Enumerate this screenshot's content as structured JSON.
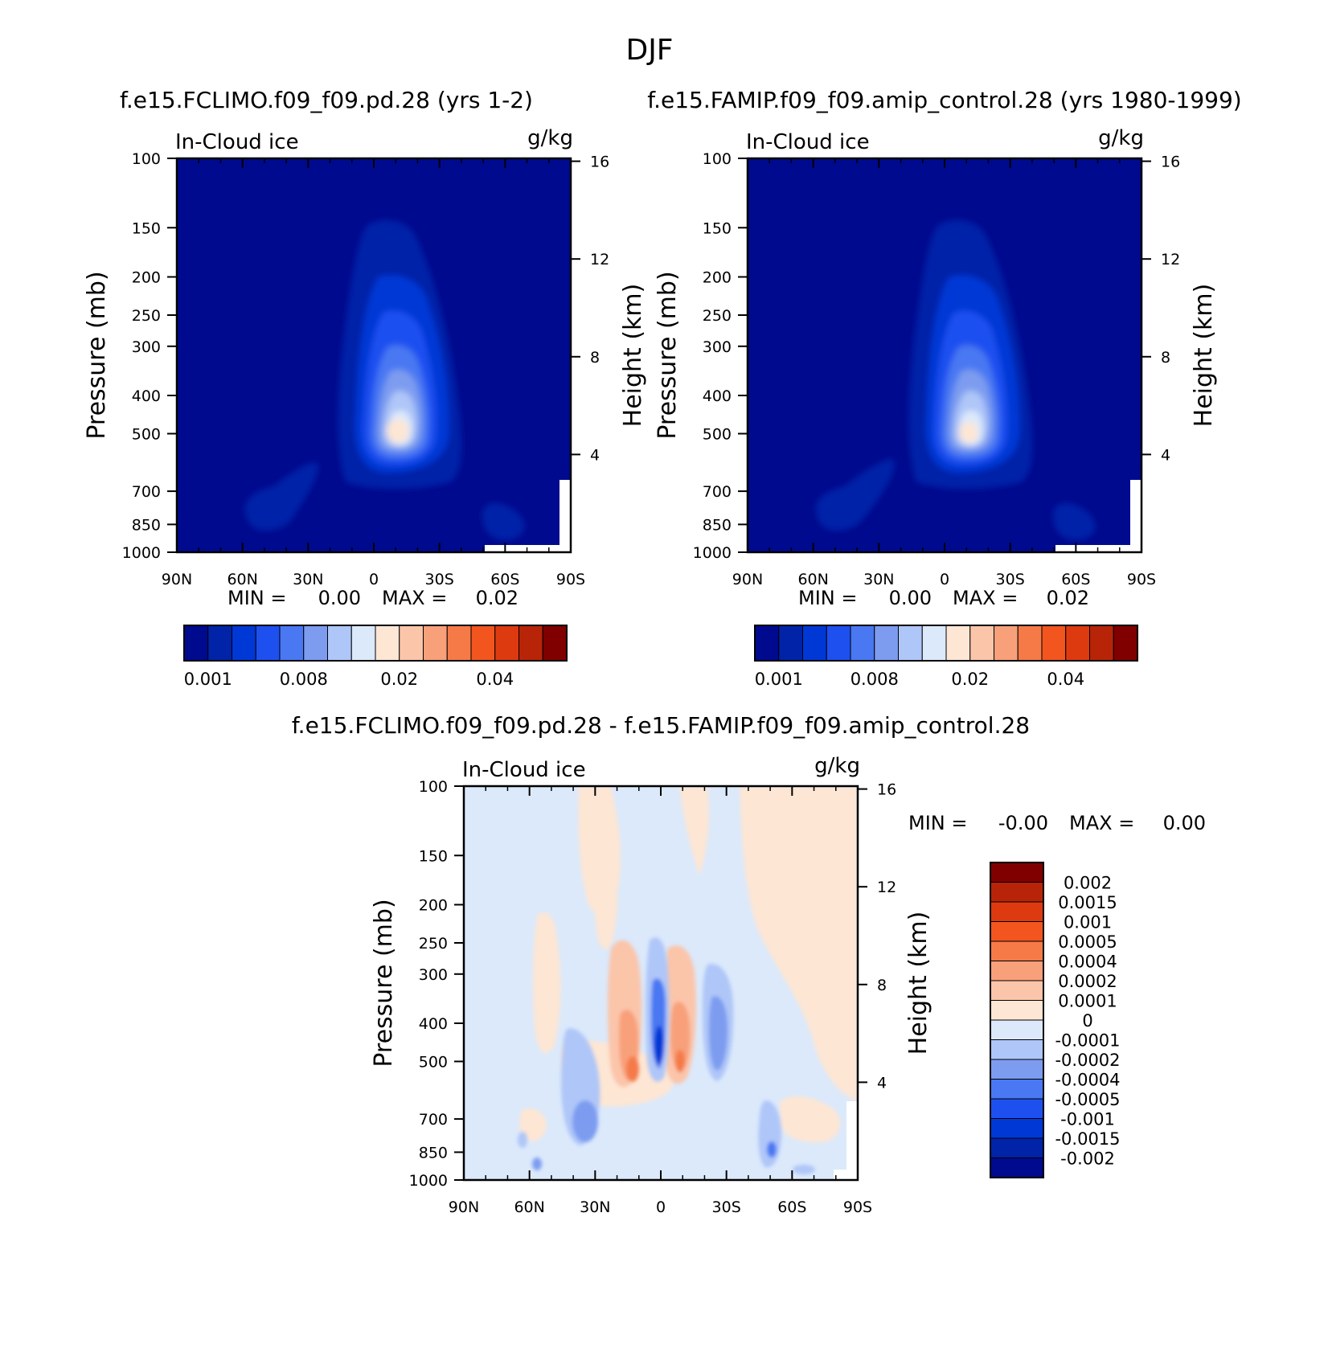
{
  "page": {
    "title": "DJF"
  },
  "colors": {
    "seq": [
      "#000a8e",
      "#0023a8",
      "#0038d6",
      "#1e50f0",
      "#4a78f2",
      "#7d9cf0",
      "#afc6f8",
      "#dbe9fb",
      "#fde6d4",
      "#fbc5aa",
      "#f8a07a",
      "#f57a48",
      "#f2561e",
      "#de3a10",
      "#b82408",
      "#800000"
    ],
    "diff": [
      "#800000",
      "#b82408",
      "#de3a10",
      "#f2561e",
      "#f57a48",
      "#f8a07a",
      "#fbc5aa",
      "#fde6d4",
      "#dbe9fb",
      "#afc6f8",
      "#7d9cf0",
      "#4a78f2",
      "#1e50f0",
      "#0038d6",
      "#0023a8",
      "#000a8e"
    ]
  },
  "chart_data": [
    {
      "type": "heatmap",
      "title": "f.e15.FCLIMO.f09_f09.pd.28 (yrs 1-2)",
      "left_label": "In-Cloud ice",
      "right_label": "g/kg",
      "xlabel": "",
      "ylabel": "Pressure (mb)",
      "y2label": "Height (km)",
      "x_ticks": [
        "90N",
        "60N",
        "30N",
        "0",
        "30S",
        "60S",
        "90S"
      ],
      "x_values": [
        90,
        60,
        30,
        0,
        -30,
        -60,
        -90
      ],
      "y_ticks": [
        100,
        150,
        200,
        250,
        300,
        400,
        500,
        700,
        850,
        1000
      ],
      "ylim": [
        1000,
        100
      ],
      "y2_ticks": [
        4,
        8,
        12,
        16
      ],
      "min_label": "MIN =",
      "min_value": "0.00",
      "max_label": "MAX =",
      "max_value": "0.02",
      "colorbar_labels": [
        "0.001",
        "0.008",
        "0.02",
        "0.04"
      ],
      "colorbar_label_positions": [
        0,
        4,
        8,
        12
      ]
    },
    {
      "type": "heatmap",
      "title": "f.e15.FAMIP.f09_f09.amip_control.28 (yrs 1980-1999)",
      "left_label": "In-Cloud ice",
      "right_label": "g/kg",
      "xlabel": "",
      "ylabel": "Pressure (mb)",
      "y2label": "Height (km)",
      "x_ticks": [
        "90N",
        "60N",
        "30N",
        "0",
        "30S",
        "60S",
        "90S"
      ],
      "x_values": [
        90,
        60,
        30,
        0,
        -30,
        -60,
        -90
      ],
      "y_ticks": [
        100,
        150,
        200,
        250,
        300,
        400,
        500,
        700,
        850,
        1000
      ],
      "ylim": [
        1000,
        100
      ],
      "y2_ticks": [
        4,
        8,
        12,
        16
      ],
      "min_label": "MIN =",
      "min_value": "0.00",
      "max_label": "MAX =",
      "max_value": "0.02",
      "colorbar_labels": [
        "0.001",
        "0.008",
        "0.02",
        "0.04"
      ],
      "colorbar_label_positions": [
        0,
        4,
        8,
        12
      ]
    },
    {
      "type": "heatmap",
      "title": "f.e15.FCLIMO.f09_f09.pd.28 - f.e15.FAMIP.f09_f09.amip_control.28",
      "left_label": "In-Cloud ice",
      "right_label": "g/kg",
      "xlabel": "",
      "ylabel": "Pressure (mb)",
      "y2label": "Height (km)",
      "x_ticks": [
        "90N",
        "60N",
        "30N",
        "0",
        "30S",
        "60S",
        "90S"
      ],
      "x_values": [
        90,
        60,
        30,
        0,
        -30,
        -60,
        -90
      ],
      "y_ticks": [
        100,
        150,
        200,
        250,
        300,
        400,
        500,
        700,
        850,
        1000
      ],
      "ylim": [
        1000,
        100
      ],
      "y2_ticks": [
        4,
        8,
        12,
        16
      ],
      "min_label": "MIN =",
      "min_value": "-0.00",
      "max_label": "MAX =",
      "max_value": "0.00",
      "colorbar_labels": [
        "0.002",
        "0.0015",
        "0.001",
        "0.0005",
        "0.0004",
        "0.0002",
        "0.0001",
        "0",
        "-0.0001",
        "-0.0002",
        "-0.0004",
        "-0.0005",
        "-0.001",
        "-0.0015",
        "-0.002"
      ]
    }
  ]
}
